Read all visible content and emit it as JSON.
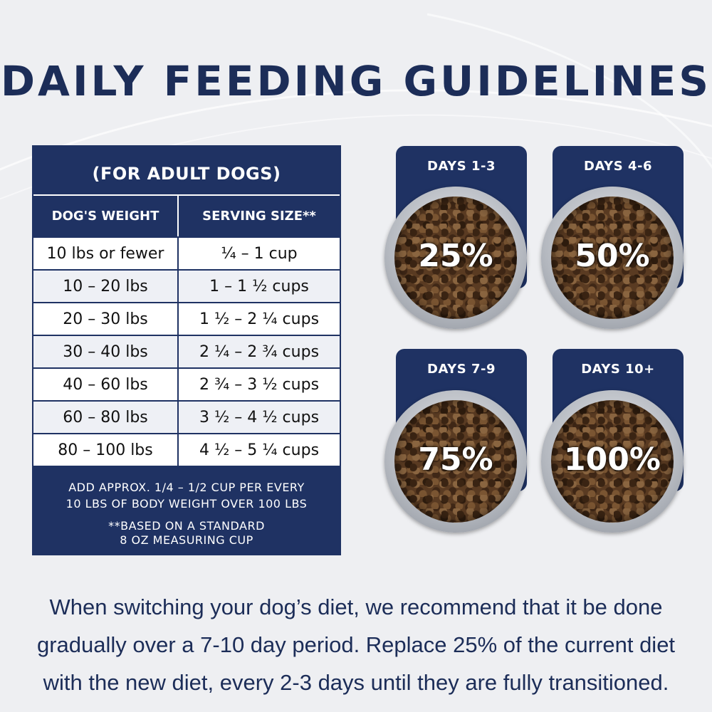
{
  "title": "DAILY FEEDING GUIDELINES",
  "table": {
    "subtitle": "(FOR ADULT DOGS)",
    "headers": [
      "DOG'S WEIGHT",
      "SERVING SIZE**"
    ],
    "rows": [
      [
        "10 lbs or fewer",
        "¼ – 1 cup"
      ],
      [
        "10 – 20 lbs",
        "1 – 1 ½ cups"
      ],
      [
        "20 – 30 lbs",
        "1 ½ – 2 ¼ cups"
      ],
      [
        "30 – 40 lbs",
        "2 ¼ – 2 ¾ cups"
      ],
      [
        "40 – 60 lbs",
        "2 ¾ – 3 ½ cups"
      ],
      [
        "60 – 80 lbs",
        "3 ½ – 4 ½ cups"
      ],
      [
        "80 – 100 lbs",
        "4 ½ – 5 ¼ cups"
      ]
    ],
    "note_1": "ADD APPROX. 1/4 – 1/2 CUP PER EVERY",
    "note_2": "10 LBS OF BODY WEIGHT OVER 100 LBS",
    "note_3": "**BASED ON A STANDARD",
    "note_4": "8 OZ MEASURING CUP"
  },
  "transition": [
    {
      "label": "DAYS 1-3",
      "percent": "25%"
    },
    {
      "label": "DAYS 4-6",
      "percent": "50%"
    },
    {
      "label": "DAYS 7-9",
      "percent": "75%"
    },
    {
      "label": "DAYS 10+",
      "percent": "100%"
    }
  ],
  "footer": {
    "line_1": "When switching your dog’s diet, we recommend that it be done",
    "line_2": "gradually over a 7-10 day period. Replace 25% of the current diet",
    "line_3": "with the new diet, every 2-3 days until they are fully transitioned."
  },
  "colors": {
    "navy": "#1f3263",
    "background": "#eeeff2"
  }
}
